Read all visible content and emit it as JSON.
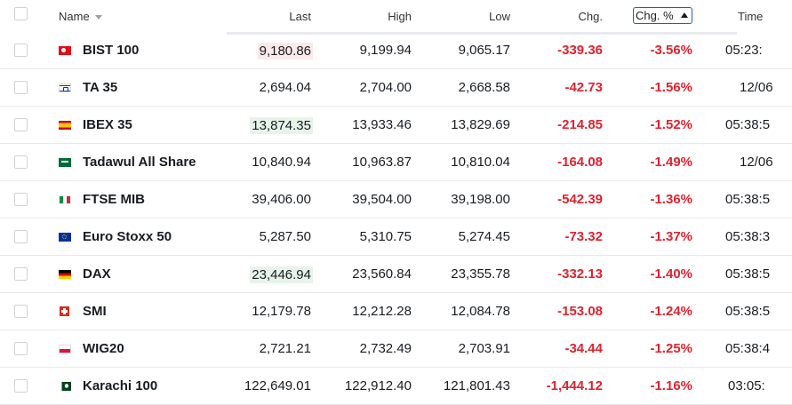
{
  "header": {
    "name": "Name",
    "last": "Last",
    "high": "High",
    "low": "Low",
    "chg": "Chg.",
    "chg_pct": "Chg. %",
    "time": "Time"
  },
  "rows": [
    {
      "flag": "turkey-flag-icon",
      "name": "BIST 100",
      "last": "9,180.86",
      "high": "9,199.94",
      "low": "9,065.17",
      "chg": "-339.36",
      "pct": "-3.56%",
      "time": "05:23:"
    },
    {
      "flag": "israel-flag-icon",
      "name": "TA 35",
      "last": "2,694.04",
      "high": "2,704.00",
      "low": "2,668.58",
      "chg": "-42.73",
      "pct": "-1.56%",
      "time": "12/06"
    },
    {
      "flag": "spain-flag-icon",
      "name": "IBEX 35",
      "last": "13,874.35",
      "high": "13,933.46",
      "low": "13,829.69",
      "chg": "-214.85",
      "pct": "-1.52%",
      "time": "05:38:5"
    },
    {
      "flag": "saudi-arabia-flag-icon",
      "name": "Tadawul All Share",
      "last": "10,840.94",
      "high": "10,963.87",
      "low": "10,810.04",
      "chg": "-164.08",
      "pct": "-1.49%",
      "time": "12/06"
    },
    {
      "flag": "italy-flag-icon",
      "name": "FTSE MIB",
      "last": "39,406.00",
      "high": "39,504.00",
      "low": "39,198.00",
      "chg": "-542.39",
      "pct": "-1.36%",
      "time": "05:38:5"
    },
    {
      "flag": "eu-flag-icon",
      "name": "Euro Stoxx 50",
      "last": "5,287.50",
      "high": "5,310.75",
      "low": "5,274.45",
      "chg": "-73.32",
      "pct": "-1.37%",
      "time": "05:38:3"
    },
    {
      "flag": "germany-flag-icon",
      "name": "DAX",
      "last": "23,446.94",
      "high": "23,560.84",
      "low": "23,355.78",
      "chg": "-332.13",
      "pct": "-1.40%",
      "time": "05:38:5"
    },
    {
      "flag": "switzerland-flag-icon",
      "name": "SMI",
      "last": "12,179.78",
      "high": "12,212.28",
      "low": "12,084.78",
      "chg": "-153.08",
      "pct": "-1.24%",
      "time": "05:38:5"
    },
    {
      "flag": "poland-flag-icon",
      "name": "WIG20",
      "last": "2,721.21",
      "high": "2,732.49",
      "low": "2,703.91",
      "chg": "-34.44",
      "pct": "-1.25%",
      "time": "05:38:4"
    },
    {
      "flag": "pakistan-flag-icon",
      "name": "Karachi 100",
      "last": "122,649.01",
      "high": "122,912.40",
      "low": "121,801.43",
      "chg": "-1,444.12",
      "pct": "-1.16%",
      "time": "03:05:"
    }
  ],
  "colors": {
    "negative": "#e0222f",
    "sort_highlight": "#1f5fb5",
    "last_down_highlight": "#fbe9eb",
    "last_up_highlight": "#e6f4ea"
  }
}
